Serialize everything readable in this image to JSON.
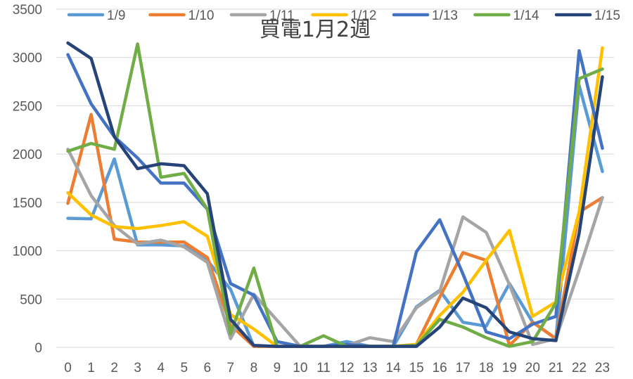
{
  "chart_data": {
    "type": "line",
    "title": "買電1月2週",
    "xlabel": "",
    "ylabel": "",
    "ylim": [
      0,
      3500
    ],
    "yticks": [
      0,
      500,
      1000,
      1500,
      2000,
      2500,
      3000,
      3500
    ],
    "grid": "horizontal",
    "legend_position": "top",
    "categories": [
      "0",
      "1",
      "2",
      "3",
      "4",
      "5",
      "6",
      "7",
      "8",
      "9",
      "10",
      "11",
      "12",
      "13",
      "14",
      "15",
      "16",
      "17",
      "18",
      "19",
      "20",
      "21",
      "22",
      "23"
    ],
    "series": [
      {
        "name": "1/9",
        "color": "#5b9bd5",
        "values": [
          1335,
          1330,
          1950,
          1060,
          1060,
          1050,
          900,
          600,
          10,
          10,
          10,
          10,
          60,
          10,
          10,
          420,
          590,
          260,
          220,
          660,
          260,
          90,
          2710,
          1820
        ]
      },
      {
        "name": "1/10",
        "color": "#ed7d31",
        "values": [
          1490,
          2410,
          1120,
          1090,
          1090,
          1090,
          930,
          230,
          10,
          10,
          10,
          10,
          10,
          10,
          10,
          30,
          520,
          980,
          900,
          20,
          260,
          90,
          1400,
          1550
        ]
      },
      {
        "name": "1/11",
        "color": "#a5a5a5",
        "values": [
          2050,
          1570,
          1260,
          1070,
          1110,
          1040,
          880,
          90,
          550,
          280,
          10,
          10,
          20,
          100,
          60,
          410,
          580,
          1350,
          1190,
          650,
          30,
          90,
          800,
          1550
        ]
      },
      {
        "name": "1/12",
        "color": "#ffc000",
        "values": [
          1600,
          1370,
          1250,
          1230,
          1260,
          1300,
          1150,
          340,
          190,
          10,
          10,
          10,
          10,
          10,
          10,
          30,
          330,
          570,
          900,
          1210,
          320,
          470,
          1400,
          3100
        ]
      },
      {
        "name": "1/13",
        "color": "#4472c4",
        "values": [
          3030,
          2520,
          2180,
          1960,
          1700,
          1700,
          1430,
          660,
          540,
          60,
          10,
          10,
          30,
          10,
          10,
          990,
          1320,
          760,
          160,
          90,
          240,
          320,
          3070,
          2060
        ]
      },
      {
        "name": "1/14",
        "color": "#70ad47",
        "values": [
          2030,
          2110,
          2050,
          3140,
          1760,
          1800,
          1430,
          140,
          820,
          10,
          10,
          120,
          10,
          10,
          10,
          20,
          290,
          210,
          100,
          10,
          60,
          460,
          2780,
          2880
        ]
      },
      {
        "name": "1/15",
        "color": "#264478",
        "values": [
          3150,
          2990,
          2180,
          1850,
          1900,
          1880,
          1590,
          290,
          20,
          10,
          10,
          10,
          10,
          10,
          10,
          10,
          210,
          510,
          410,
          160,
          90,
          70,
          1180,
          2800
        ]
      }
    ]
  }
}
